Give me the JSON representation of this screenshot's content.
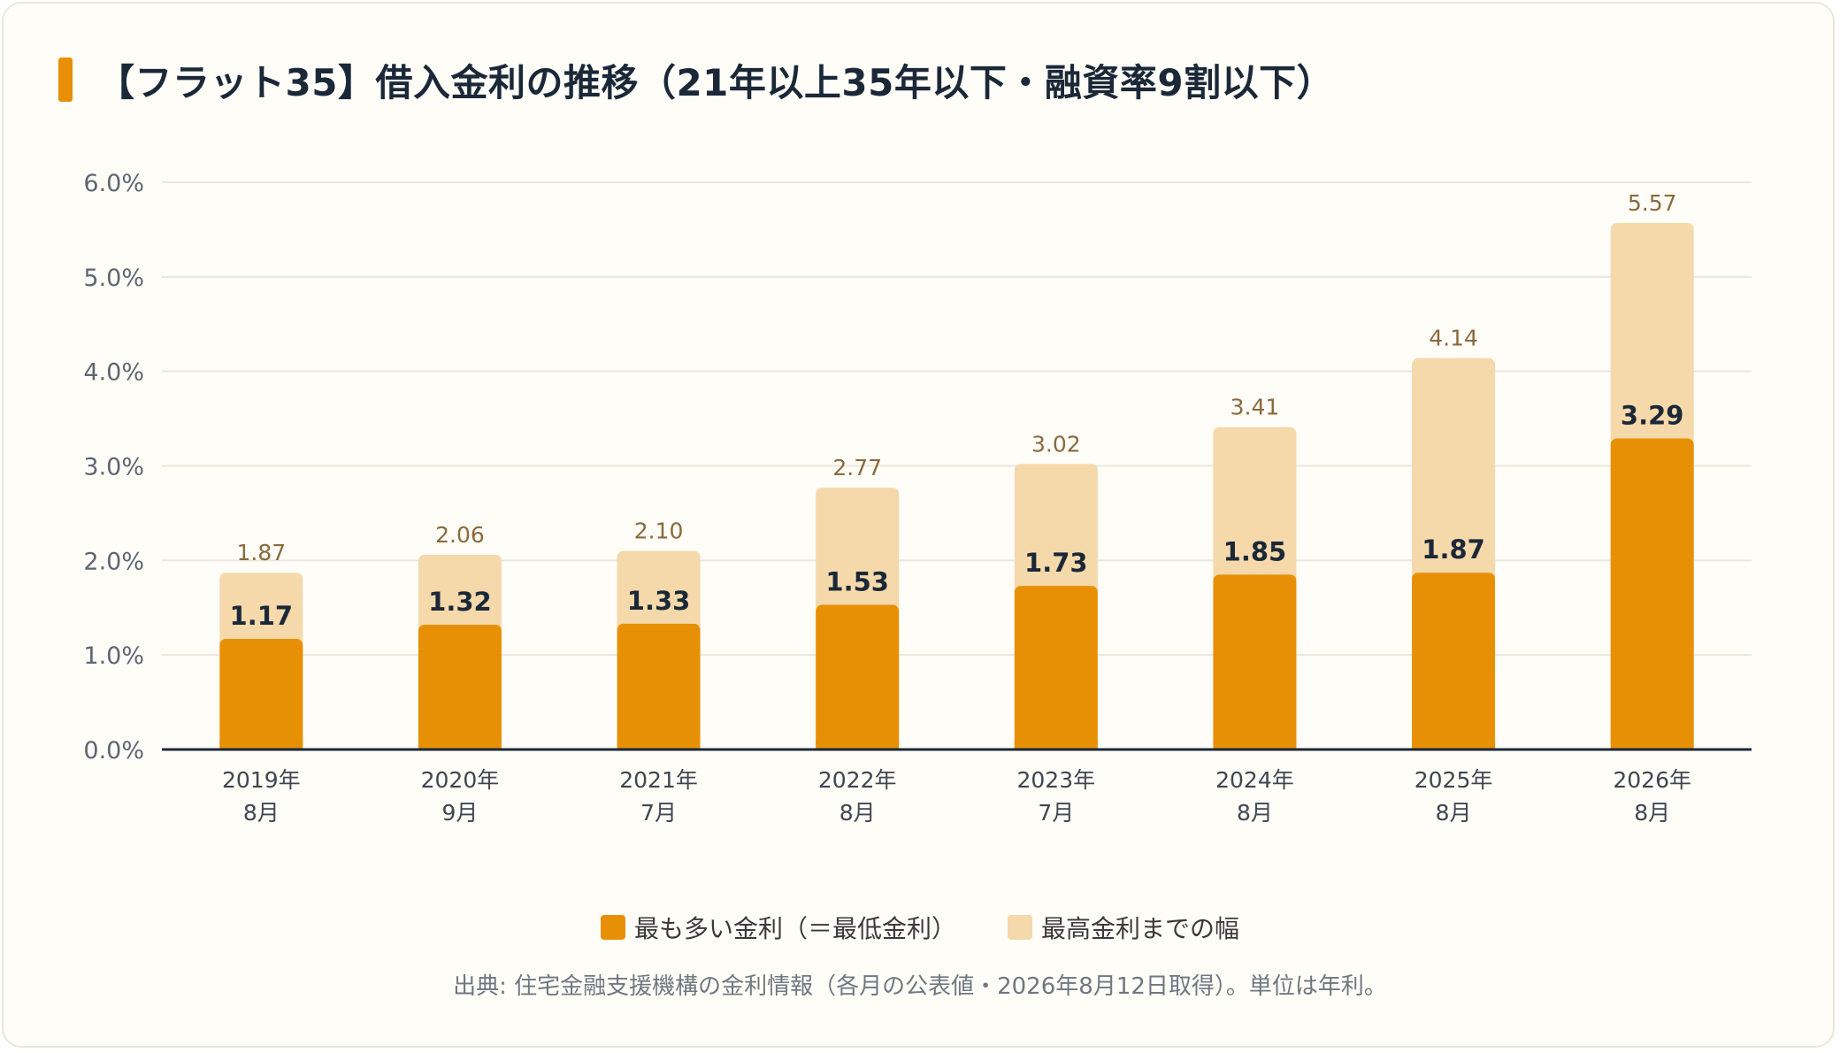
{
  "title": "【フラット35】借入金利の推移（21年以上35年以下・融資率9割以下）",
  "source": "出典: 住宅金融支援機構の金利情報（各月の公表値・2026年8月12日取得）。単位は年利。",
  "colors": {
    "min_rate": "#e89005",
    "range": "#f5d9ab",
    "min_label": "#1b2838",
    "max_label": "#8a6a3c",
    "accent": "#e89005"
  },
  "chart_data": {
    "type": "bar",
    "stacked": true,
    "ylim": [
      0,
      6
    ],
    "yticks": [
      "0.0%",
      "1.0%",
      "2.0%",
      "3.0%",
      "4.0%",
      "5.0%",
      "6.0%"
    ],
    "ytick_values": [
      0,
      1,
      2,
      3,
      4,
      5,
      6
    ],
    "categories": [
      [
        "2019年",
        "8月"
      ],
      [
        "2020年",
        "9月"
      ],
      [
        "2021年",
        "7月"
      ],
      [
        "2022年",
        "8月"
      ],
      [
        "2023年",
        "7月"
      ],
      [
        "2024年",
        "8月"
      ],
      [
        "2025年",
        "8月"
      ],
      [
        "2026年",
        "8月"
      ]
    ],
    "series": [
      {
        "name": "最も多い金利（＝最低金利）",
        "values": [
          1.17,
          1.32,
          1.33,
          1.53,
          1.73,
          1.85,
          1.87,
          3.29
        ]
      },
      {
        "name": "最高金利までの幅",
        "values": [
          0.7,
          0.74,
          0.77,
          1.24,
          1.29,
          1.56,
          2.27,
          2.28
        ]
      }
    ],
    "min_labels": [
      "1.17",
      "1.32",
      "1.33",
      "1.53",
      "1.73",
      "1.85",
      "1.87",
      "3.29"
    ],
    "max_labels": [
      "1.87",
      "2.06",
      "2.10",
      "2.77",
      "3.02",
      "3.41",
      "4.14",
      "5.57"
    ],
    "max_values": [
      1.87,
      2.06,
      2.1,
      2.77,
      3.02,
      3.41,
      4.14,
      5.57
    ],
    "grid": true,
    "legend_position": "bottom-center"
  },
  "legend": [
    {
      "label": "最も多い金利（＝最低金利）"
    },
    {
      "label": "最高金利までの幅"
    }
  ]
}
